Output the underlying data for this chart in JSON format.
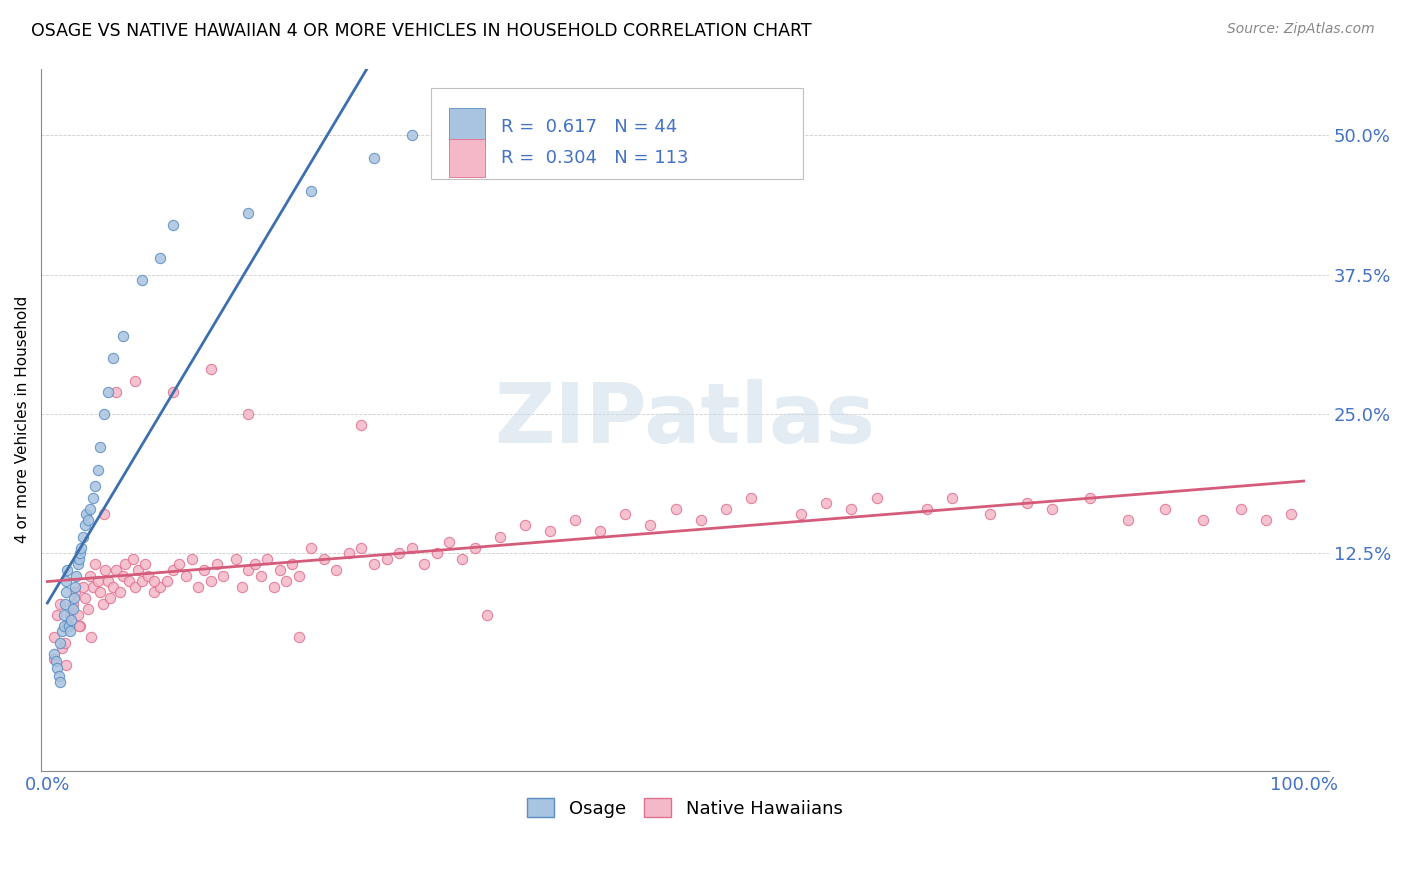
{
  "title": "OSAGE VS NATIVE HAWAIIAN 4 OR MORE VEHICLES IN HOUSEHOLD CORRELATION CHART",
  "source": "Source: ZipAtlas.com",
  "ylabel": "4 or more Vehicles in Household",
  "ytick_labels": [
    "12.5%",
    "25.0%",
    "37.5%",
    "50.0%"
  ],
  "ytick_values": [
    0.125,
    0.25,
    0.375,
    0.5
  ],
  "xlim": [
    -0.005,
    1.02
  ],
  "ylim": [
    -0.07,
    0.56
  ],
  "osage_color": "#a8c4e0",
  "osage_edge_color": "#5b8ec4",
  "osage_line_color": "#3d6fad",
  "native_color": "#f4b8c8",
  "native_edge_color": "#e07090",
  "native_line_color": "#d45c7a",
  "tick_color": "#4472c4",
  "osage_R": 0.617,
  "osage_N": 44,
  "native_R": 0.304,
  "native_N": 113,
  "watermark_text": "ZIPatlas",
  "legend_label_osage": "Osage",
  "legend_label_native": "Native Hawaiians",
  "osage_x": [
    0.005,
    0.007,
    0.008,
    0.009,
    0.01,
    0.01,
    0.012,
    0.013,
    0.013,
    0.014,
    0.015,
    0.015,
    0.016,
    0.017,
    0.018,
    0.019,
    0.02,
    0.021,
    0.022,
    0.023,
    0.024,
    0.025,
    0.026,
    0.027,
    0.028,
    0.03,
    0.031,
    0.032,
    0.034,
    0.036,
    0.038,
    0.04,
    0.042,
    0.045,
    0.048,
    0.052,
    0.06,
    0.075,
    0.09,
    0.1,
    0.16,
    0.21,
    0.26,
    0.29
  ],
  "osage_y": [
    0.035,
    0.028,
    0.022,
    0.015,
    0.01,
    0.045,
    0.055,
    0.06,
    0.07,
    0.08,
    0.09,
    0.1,
    0.11,
    0.06,
    0.055,
    0.065,
    0.075,
    0.085,
    0.095,
    0.105,
    0.115,
    0.12,
    0.125,
    0.13,
    0.14,
    0.15,
    0.16,
    0.155,
    0.165,
    0.175,
    0.185,
    0.2,
    0.22,
    0.25,
    0.27,
    0.3,
    0.32,
    0.37,
    0.39,
    0.42,
    0.43,
    0.45,
    0.48,
    0.5
  ],
  "native_x": [
    0.005,
    0.008,
    0.01,
    0.012,
    0.014,
    0.016,
    0.018,
    0.02,
    0.022,
    0.024,
    0.026,
    0.028,
    0.03,
    0.032,
    0.034,
    0.036,
    0.038,
    0.04,
    0.042,
    0.044,
    0.046,
    0.048,
    0.05,
    0.052,
    0.055,
    0.058,
    0.06,
    0.062,
    0.065,
    0.068,
    0.07,
    0.072,
    0.075,
    0.078,
    0.08,
    0.085,
    0.09,
    0.095,
    0.1,
    0.105,
    0.11,
    0.115,
    0.12,
    0.125,
    0.13,
    0.135,
    0.14,
    0.15,
    0.155,
    0.16,
    0.165,
    0.17,
    0.175,
    0.18,
    0.185,
    0.19,
    0.195,
    0.2,
    0.21,
    0.22,
    0.23,
    0.24,
    0.25,
    0.26,
    0.27,
    0.28,
    0.29,
    0.3,
    0.31,
    0.32,
    0.33,
    0.34,
    0.36,
    0.38,
    0.4,
    0.42,
    0.44,
    0.46,
    0.48,
    0.5,
    0.52,
    0.54,
    0.56,
    0.6,
    0.62,
    0.64,
    0.66,
    0.7,
    0.72,
    0.75,
    0.78,
    0.8,
    0.83,
    0.86,
    0.89,
    0.92,
    0.95,
    0.97,
    0.99,
    0.005,
    0.015,
    0.025,
    0.035,
    0.045,
    0.055,
    0.07,
    0.085,
    0.1,
    0.13,
    0.16,
    0.2,
    0.25,
    0.35
  ],
  "native_y": [
    0.05,
    0.07,
    0.08,
    0.04,
    0.045,
    0.06,
    0.07,
    0.08,
    0.09,
    0.07,
    0.06,
    0.095,
    0.085,
    0.075,
    0.105,
    0.095,
    0.115,
    0.1,
    0.09,
    0.08,
    0.11,
    0.1,
    0.085,
    0.095,
    0.11,
    0.09,
    0.105,
    0.115,
    0.1,
    0.12,
    0.095,
    0.11,
    0.1,
    0.115,
    0.105,
    0.09,
    0.095,
    0.1,
    0.11,
    0.115,
    0.105,
    0.12,
    0.095,
    0.11,
    0.1,
    0.115,
    0.105,
    0.12,
    0.095,
    0.11,
    0.115,
    0.105,
    0.12,
    0.095,
    0.11,
    0.1,
    0.115,
    0.105,
    0.13,
    0.12,
    0.11,
    0.125,
    0.13,
    0.115,
    0.12,
    0.125,
    0.13,
    0.115,
    0.125,
    0.135,
    0.12,
    0.13,
    0.14,
    0.15,
    0.145,
    0.155,
    0.145,
    0.16,
    0.15,
    0.165,
    0.155,
    0.165,
    0.175,
    0.16,
    0.17,
    0.165,
    0.175,
    0.165,
    0.175,
    0.16,
    0.17,
    0.165,
    0.175,
    0.155,
    0.165,
    0.155,
    0.165,
    0.155,
    0.16,
    0.03,
    0.025,
    0.06,
    0.05,
    0.16,
    0.27,
    0.28,
    0.1,
    0.27,
    0.29,
    0.25,
    0.05,
    0.24,
    0.07
  ]
}
